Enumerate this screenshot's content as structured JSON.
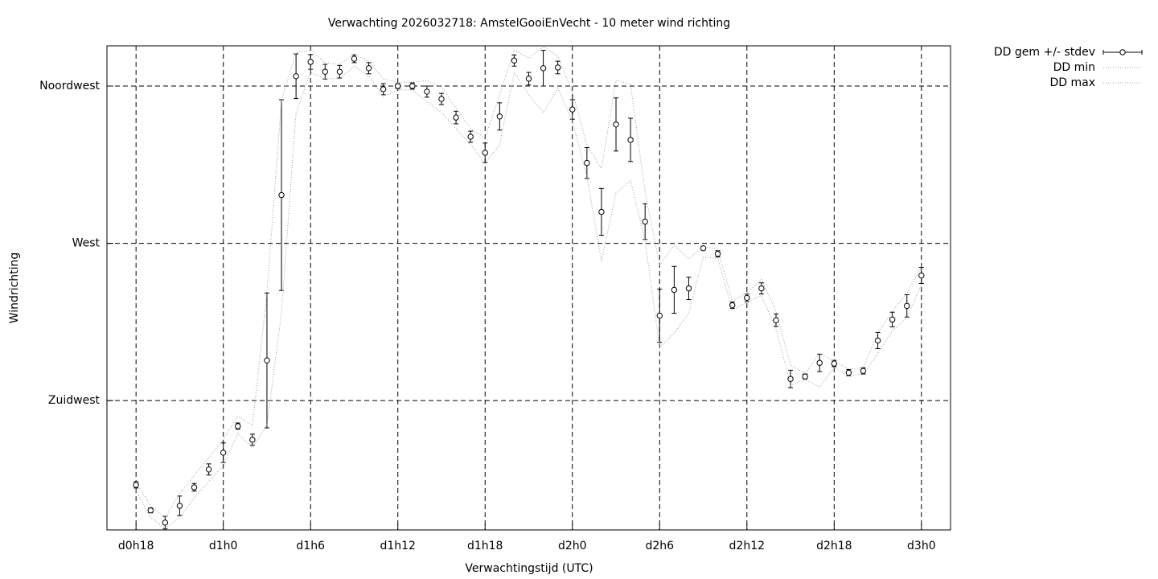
{
  "chart_data": {
    "type": "errorbar",
    "title": "Verwachting 2026032718: AmstelGooiEnVecht - 10 meter wind richting",
    "xlabel": "Verwachtingstijd (UTC)",
    "ylabel": "Windrichting",
    "x": [
      18,
      19,
      20,
      21,
      22,
      23,
      24,
      25,
      26,
      27,
      28,
      29,
      30,
      31,
      32,
      33,
      34,
      35,
      36,
      37,
      38,
      39,
      40,
      41,
      42,
      43,
      44,
      45,
      46,
      47,
      48,
      49,
      50,
      51,
      52,
      53,
      54,
      55,
      56,
      57,
      58,
      59,
      60,
      61,
      62,
      63,
      64,
      65,
      66,
      67,
      68,
      69,
      70,
      71,
      72
    ],
    "xlim": [
      16,
      74
    ],
    "xticks": [
      {
        "value": 18,
        "label": "d0h18"
      },
      {
        "value": 24,
        "label": "d1h0"
      },
      {
        "value": 30,
        "label": "d1h6"
      },
      {
        "value": 36,
        "label": "d1h12"
      },
      {
        "value": 42,
        "label": "d1h18"
      },
      {
        "value": 48,
        "label": "d2h0"
      },
      {
        "value": 54,
        "label": "d2h6"
      },
      {
        "value": 60,
        "label": "d2h12"
      },
      {
        "value": 66,
        "label": "d2h18"
      },
      {
        "value": 72,
        "label": "d3h0"
      }
    ],
    "ylim": [
      188,
      326.5
    ],
    "yticks": [
      {
        "value": 225,
        "label": "Zuidwest"
      },
      {
        "value": 270,
        "label": "West"
      },
      {
        "value": 315,
        "label": "Noordwest"
      }
    ],
    "grid": true,
    "legend": "outside-top-right",
    "series": [
      {
        "name": "DD gem +/- stdev",
        "color": "#000000",
        "values": [
          200.9,
          193.6,
          190.1,
          194.9,
          200.2,
          205.3,
          210.1,
          217.7,
          213.8,
          236.5,
          283.8,
          317.8,
          321.9,
          319.1,
          319.1,
          322.8,
          320.1,
          314.1,
          315,
          315,
          313.4,
          311.3,
          306.0,
          300.5,
          295.9,
          306.3,
          322.3,
          317.1,
          320.1,
          320.3,
          308.3,
          293.0,
          279.0,
          304.0,
          299.6,
          276.2,
          249.3,
          256.7,
          257.1,
          268.6,
          267.0,
          252.3,
          254.4,
          257.1,
          248.0,
          231.2,
          231.9,
          235.8,
          235.6,
          233.0,
          233.5,
          242.2,
          248.2,
          252.1,
          260.8
        ],
        "errors": [
          0.9,
          0.7,
          1.8,
          2.8,
          1.1,
          1.6,
          2.8,
          0.9,
          1.6,
          19.3,
          27.3,
          6.4,
          2.1,
          2.1,
          1.8,
          1.1,
          1.6,
          1.6,
          0.7,
          0.9,
          1.6,
          1.6,
          1.8,
          1.6,
          2.8,
          3.9,
          1.6,
          1.8,
          5.1,
          1.8,
          2.8,
          4.4,
          6.7,
          7.6,
          6.2,
          5.1,
          7.6,
          6.7,
          3.2,
          0.5,
          0.9,
          0.9,
          1.1,
          1.6,
          1.8,
          2.5,
          0.7,
          2.5,
          0.9,
          0.9,
          0.9,
          2.3,
          2.1,
          3.2,
          2.3
        ]
      },
      {
        "name": "DD min",
        "color": "#a0a0a0",
        "values": [
          199.1,
          191.5,
          188.5,
          191.5,
          197.2,
          201.8,
          206.4,
          215.6,
          211.5,
          217.9,
          250.0,
          307.4,
          318.9,
          317.1,
          317.1,
          320.7,
          317.8,
          312.0,
          313.9,
          313.9,
          310.6,
          307.4,
          302.8,
          298.2,
          293.0,
          298.2,
          318.9,
          312.5,
          307.4,
          314.3,
          305.1,
          289.1,
          264.9,
          284.5,
          287.9,
          270.7,
          240.2,
          244.3,
          250.0,
          266.1,
          265.6,
          250.9,
          253.2,
          255.1,
          245.4,
          229.4,
          231.0,
          228.9,
          234.4,
          232.1,
          232.6,
          238.5,
          245.0,
          248.6,
          258.3
        ]
      },
      {
        "name": "DD max",
        "color": "#a0a0a0",
        "values": [
          201.8,
          194.9,
          191.5,
          198.4,
          203.6,
          208.7,
          213.8,
          220.6,
          217.9,
          255.8,
          310.9,
          324.6,
          325.3,
          321.7,
          321.2,
          324.2,
          321.9,
          317.1,
          316.1,
          316.1,
          316.6,
          314.8,
          308.6,
          302.8,
          300.1,
          312.5,
          325.3,
          323.0,
          326.2,
          323.5,
          313.2,
          298.2,
          291.4,
          316.6,
          315.5,
          284.5,
          263.8,
          269.5,
          265.6,
          269.1,
          268.4,
          253.5,
          255.8,
          259.7,
          250.5,
          235.1,
          232.8,
          238.5,
          236.3,
          234.0,
          234.4,
          244.3,
          250.5,
          255.8,
          263.3
        ]
      }
    ]
  }
}
